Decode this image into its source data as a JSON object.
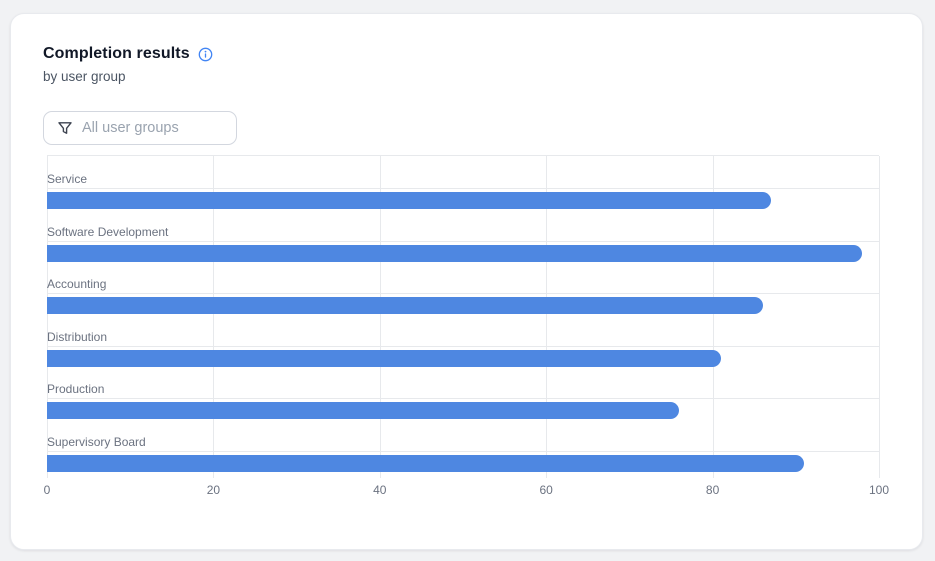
{
  "card": {
    "title": "Completion results",
    "subtitle": "by user group"
  },
  "filter": {
    "placeholder": "All user groups",
    "icon": "filter-funnel-icon"
  },
  "icons": {
    "info": "info-icon",
    "filter": "filter-funnel-icon"
  },
  "chart_data": {
    "type": "bar",
    "orientation": "horizontal",
    "title": "Completion results",
    "subtitle": "by user group",
    "categories": [
      "Service",
      "Software Development",
      "Accounting",
      "Distribution",
      "Production",
      "Supervisory Board"
    ],
    "values": [
      87,
      98,
      86,
      81,
      76,
      91
    ],
    "xlabel": "",
    "ylabel": "",
    "xlim": [
      0,
      100
    ],
    "x_ticks": [
      0,
      20,
      40,
      60,
      80,
      100
    ],
    "grid": true,
    "legend": "none",
    "bar_color": "#4e87e1"
  },
  "colors": {
    "bar": "#4e87e1",
    "accent_blue": "#4285f4",
    "gridline": "#e7e9ec",
    "category_label": "#6b7280",
    "tick_label": "#6b7280",
    "title": "#111827",
    "subtitle": "#4b5563",
    "card_background": "#ffffff",
    "page_background": "#f1f2f4",
    "card_border": "#e8eaee",
    "filter_border": "#d3d7df",
    "placeholder": "#9aa3af"
  }
}
